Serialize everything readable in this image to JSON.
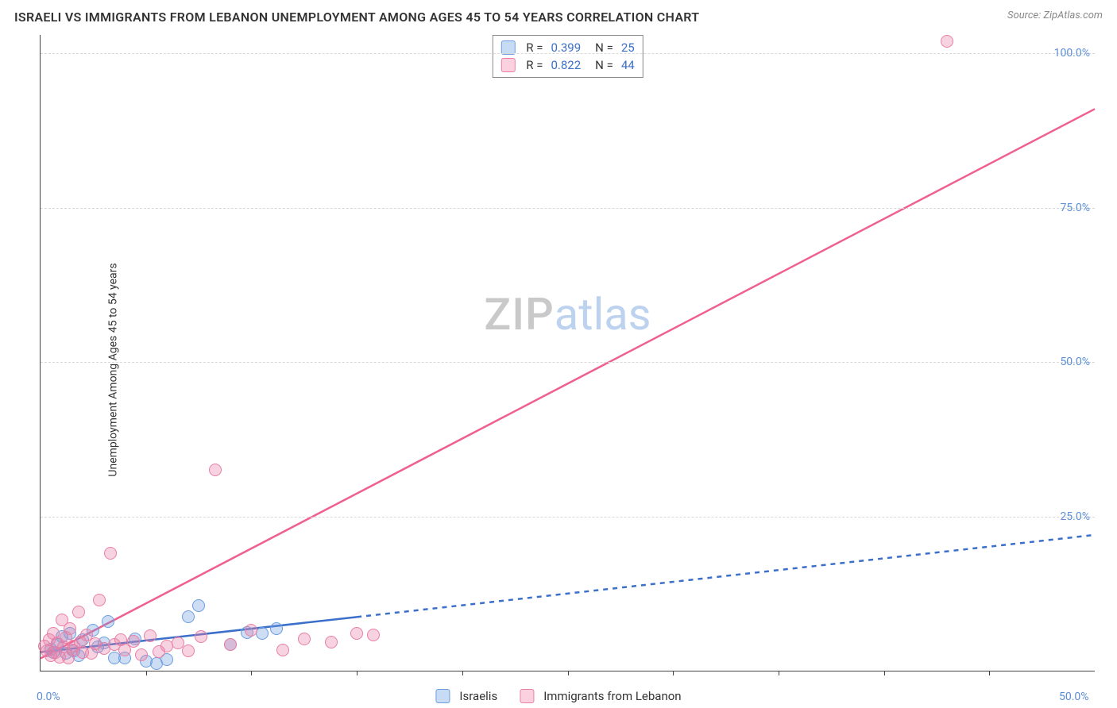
{
  "header": {
    "title": "ISRAELI VS IMMIGRANTS FROM LEBANON UNEMPLOYMENT AMONG AGES 45 TO 54 YEARS CORRELATION CHART",
    "source_label": "Source: ZipAtlas.com"
  },
  "y_axis": {
    "label": "Unemployment Among Ages 45 to 54 years"
  },
  "watermark": {
    "part1": "ZIP",
    "part2": "atlas"
  },
  "stats_box": {
    "rows": [
      {
        "swatch_fill": "#c7dbf4",
        "swatch_border": "#6d9ee0",
        "r_label": "R =",
        "r": "0.399",
        "n_label": "N =",
        "n": "25"
      },
      {
        "swatch_fill": "#fbd1df",
        "swatch_border": "#e97fa5",
        "r_label": "R =",
        "r": "0.822",
        "n_label": "N =",
        "n": "44"
      }
    ]
  },
  "legend": {
    "items": [
      {
        "label": "Israelis",
        "swatch_fill": "#c7dbf4",
        "swatch_border": "#6d9ee0"
      },
      {
        "label": "Immigrants from Lebanon",
        "swatch_fill": "#fbd1df",
        "swatch_border": "#e97fa5"
      }
    ]
  },
  "chart": {
    "type": "scatter",
    "background_color": "#ffffff",
    "grid_color": "#d8d8d8",
    "axis_color": "#444444",
    "xlim": [
      0,
      50
    ],
    "ylim": [
      0,
      103
    ],
    "yticks": [
      {
        "v": 25,
        "label": "25.0%"
      },
      {
        "v": 50,
        "label": "50.0%"
      },
      {
        "v": 75,
        "label": "75.0%"
      },
      {
        "v": 100,
        "label": "100.0%"
      }
    ],
    "xticks_major": [
      {
        "v": 0,
        "label": "0.0%"
      },
      {
        "v": 50,
        "label": "50.0%"
      }
    ],
    "xticks_minor": [
      5,
      10,
      15,
      20,
      25,
      30,
      35,
      40,
      45
    ],
    "series": [
      {
        "name": "Israelis",
        "color_fill": "rgba(109,158,224,0.35)",
        "color_stroke": "#6d9ee0",
        "marker_radius": 8,
        "trend": {
          "color": "#3b6fc9",
          "width": 2.5,
          "x1": 0,
          "y1": 3.0,
          "x2": 50,
          "y2": 22.0,
          "solid_until_x": 15,
          "dash": "6 6"
        },
        "points": [
          [
            0.5,
            3.5
          ],
          [
            0.6,
            3.0
          ],
          [
            0.8,
            4.2
          ],
          [
            1.0,
            5.5
          ],
          [
            1.2,
            2.8
          ],
          [
            1.4,
            6.0
          ],
          [
            1.6,
            3.2
          ],
          [
            1.8,
            2.5
          ],
          [
            2.0,
            5.0
          ],
          [
            2.5,
            6.5
          ],
          [
            2.7,
            3.8
          ],
          [
            3.0,
            4.5
          ],
          [
            3.2,
            8.0
          ],
          [
            3.5,
            2.0
          ],
          [
            4.0,
            2.0
          ],
          [
            4.5,
            5.2
          ],
          [
            5.0,
            1.5
          ],
          [
            5.5,
            1.2
          ],
          [
            6.0,
            1.8
          ],
          [
            7.0,
            8.8
          ],
          [
            7.5,
            10.5
          ],
          [
            9.0,
            4.2
          ],
          [
            9.8,
            6.2
          ],
          [
            10.5,
            6.0
          ],
          [
            11.2,
            6.8
          ]
        ]
      },
      {
        "name": "Immigrants from Lebanon",
        "color_fill": "rgba(233,127,165,0.35)",
        "color_stroke": "#e97fa5",
        "marker_radius": 8,
        "trend": {
          "color": "#ef5f8f",
          "width": 2.5,
          "x1": 0,
          "y1": 2.0,
          "x2": 50,
          "y2": 91.0,
          "solid_until_x": 50,
          "dash": ""
        },
        "points": [
          [
            0.2,
            4.0
          ],
          [
            0.3,
            3.2
          ],
          [
            0.4,
            5.0
          ],
          [
            0.5,
            2.5
          ],
          [
            0.6,
            6.0
          ],
          [
            0.7,
            3.0
          ],
          [
            0.8,
            4.5
          ],
          [
            0.9,
            2.2
          ],
          [
            1.0,
            8.2
          ],
          [
            1.1,
            3.8
          ],
          [
            1.2,
            5.4
          ],
          [
            1.3,
            2.0
          ],
          [
            1.4,
            6.8
          ],
          [
            1.5,
            3.4
          ],
          [
            1.6,
            4.0
          ],
          [
            1.8,
            9.5
          ],
          [
            1.9,
            4.6
          ],
          [
            2.0,
            3.0
          ],
          [
            2.2,
            5.8
          ],
          [
            2.4,
            2.8
          ],
          [
            2.6,
            4.4
          ],
          [
            2.8,
            11.5
          ],
          [
            3.0,
            3.6
          ],
          [
            3.3,
            19.0
          ],
          [
            3.5,
            4.2
          ],
          [
            3.8,
            5.0
          ],
          [
            4.0,
            3.3
          ],
          [
            4.4,
            4.8
          ],
          [
            4.8,
            2.6
          ],
          [
            5.2,
            5.6
          ],
          [
            5.6,
            3.1
          ],
          [
            6.0,
            4.0
          ],
          [
            6.5,
            4.5
          ],
          [
            7.0,
            3.2
          ],
          [
            7.6,
            5.5
          ],
          [
            8.3,
            32.5
          ],
          [
            9.0,
            4.2
          ],
          [
            10.0,
            6.5
          ],
          [
            11.5,
            3.4
          ],
          [
            12.5,
            5.2
          ],
          [
            13.8,
            4.6
          ],
          [
            15.0,
            6.0
          ],
          [
            15.8,
            5.8
          ],
          [
            43.0,
            102.0
          ]
        ]
      }
    ]
  }
}
